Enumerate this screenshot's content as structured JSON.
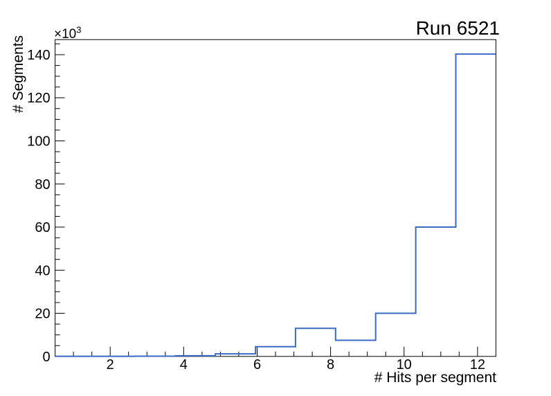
{
  "chart_data": {
    "type": "histogram-step",
    "title": "Run 6521",
    "xlabel": "# Hits per segment",
    "ylabel": "# Segments",
    "y_axis_multiplier": {
      "base": "×10",
      "exponent": "3"
    },
    "x_range": [
      0.5,
      12.5
    ],
    "y_range": [
      0,
      147000
    ],
    "bin_edges": [
      0.5,
      1.591,
      2.682,
      3.773,
      4.864,
      5.955,
      7.045,
      8.136,
      9.227,
      10.318,
      11.409,
      12.5
    ],
    "counts": [
      50,
      50,
      100,
      300,
      1200,
      4500,
      13000,
      7500,
      20000,
      60000,
      140300
    ],
    "x_ticks": {
      "major": [
        2,
        4,
        6,
        8,
        10,
        12
      ],
      "labels": [
        "2",
        "4",
        "6",
        "8",
        "10",
        "12"
      ],
      "minor_step": 0.5
    },
    "y_ticks": {
      "major": [
        0,
        20000,
        40000,
        60000,
        80000,
        100000,
        120000,
        140000
      ],
      "labels": [
        "0",
        "20",
        "40",
        "60",
        "80",
        "100",
        "120",
        "140"
      ],
      "minor_step": 5000
    },
    "grid": false,
    "legend_position": "none",
    "colors": {
      "line": "#3b68c4",
      "axis": "#000000",
      "text": "#000000",
      "background": "#ffffff"
    }
  }
}
